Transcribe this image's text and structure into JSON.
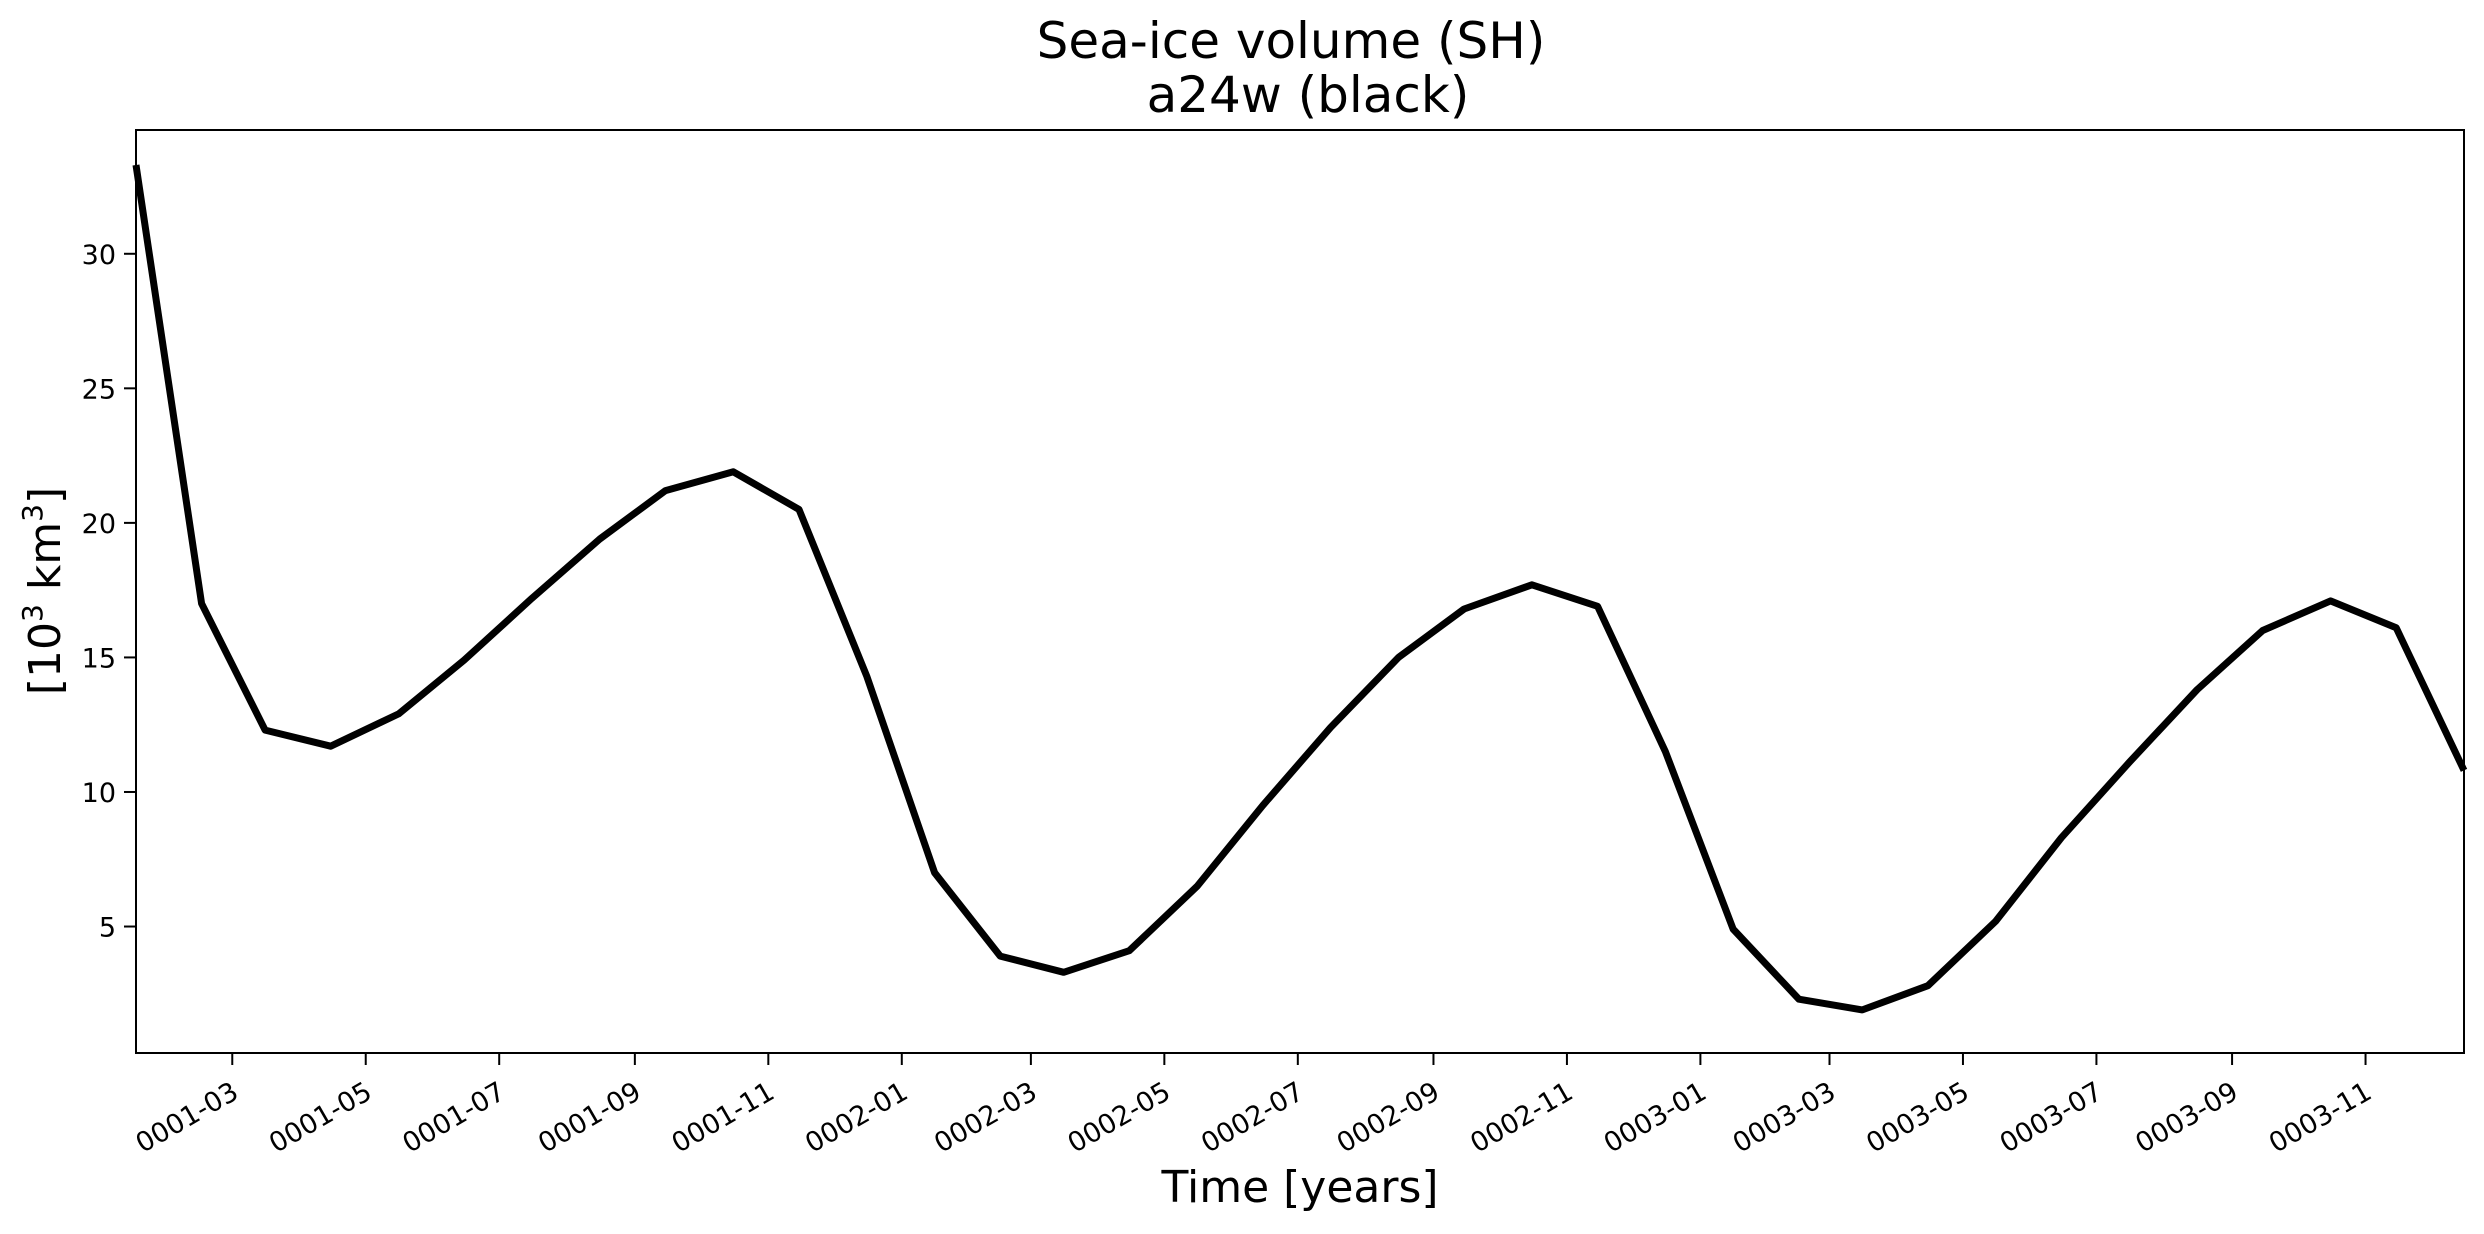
{
  "chart_data": {
    "type": "line",
    "title": "Sea-ice volume (SH)",
    "subtitle": "a24w (black)",
    "xlabel": "Time [years]",
    "ylabel": "[10³ km³]",
    "ylabel_parts": {
      "lead": "[10",
      "exp1": "3",
      "mid": " km",
      "exp2": "3",
      "tail": "]"
    },
    "grid": false,
    "xlim": [
      "0001-01-16",
      "0003-12-16"
    ],
    "ylim": [
      0.3,
      34.6
    ],
    "yticks": [
      5,
      10,
      15,
      20,
      25,
      30
    ],
    "xticks": [
      "0001-03",
      "0001-05",
      "0001-07",
      "0001-09",
      "0001-11",
      "0002-01",
      "0002-03",
      "0002-05",
      "0002-07",
      "0002-09",
      "0002-11",
      "0003-01",
      "0003-03",
      "0003-05",
      "0003-07",
      "0003-09",
      "0003-11"
    ],
    "series": [
      {
        "color": "#000000",
        "x": [
          "0001-01-16",
          "0001-02-15",
          "0001-03-16",
          "0001-04-15",
          "0001-05-16",
          "0001-06-15",
          "0001-07-16",
          "0001-08-16",
          "0001-09-15",
          "0001-10-16",
          "0001-11-15",
          "0001-12-16",
          "0002-01-16",
          "0002-02-15",
          "0002-03-16",
          "0002-04-15",
          "0002-05-16",
          "0002-06-15",
          "0002-07-16",
          "0002-08-16",
          "0002-09-15",
          "0002-10-16",
          "0002-11-15",
          "0002-12-16",
          "0003-01-16",
          "0003-02-15",
          "0003-03-16",
          "0003-04-15",
          "0003-05-16",
          "0003-06-15",
          "0003-07-16",
          "0003-08-16",
          "0003-09-15",
          "0003-10-16",
          "0003-11-15",
          "0003-12-16"
        ],
        "values": [
          33.3,
          17.0,
          12.3,
          11.7,
          12.9,
          14.9,
          17.2,
          19.4,
          21.2,
          21.9,
          20.5,
          14.3,
          7.0,
          3.9,
          3.3,
          4.1,
          6.5,
          9.5,
          12.4,
          15.0,
          16.8,
          17.7,
          16.9,
          11.5,
          4.9,
          2.3,
          1.9,
          2.8,
          5.2,
          8.3,
          11.1,
          13.8,
          16.0,
          17.1,
          16.1,
          10.8
        ]
      }
    ]
  }
}
